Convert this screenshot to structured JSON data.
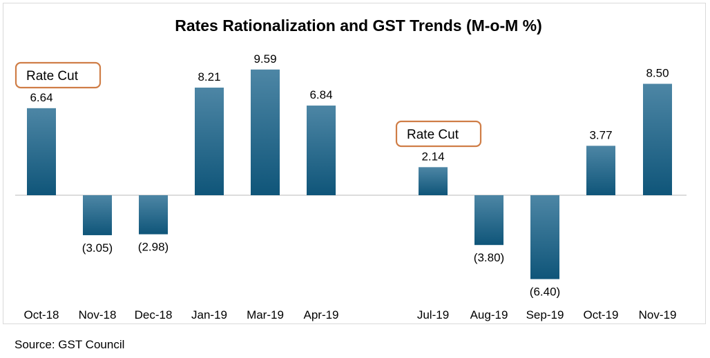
{
  "source_note": "Source: GST Council",
  "chart_data": {
    "type": "bar",
    "title": "Rates Rationalization and GST Trends (M-o-M %)",
    "xlabel": "",
    "ylabel": "",
    "ylim": [
      -7.5,
      10.5
    ],
    "grid": false,
    "categories": [
      "Oct-18",
      "Nov-18",
      "Dec-18",
      "Jan-19",
      "Mar-19",
      "Apr-19",
      "Jul-19",
      "Aug-19",
      "Sep-19",
      "Oct-19",
      "Nov-19"
    ],
    "values": [
      6.64,
      -3.05,
      -2.98,
      8.21,
      9.59,
      6.84,
      2.14,
      -3.8,
      -6.4,
      3.77,
      8.5
    ],
    "value_labels": [
      "6.64",
      "(3.05)",
      "(2.98)",
      "8.21",
      "9.59",
      "6.84",
      "2.14",
      "(3.80)",
      "(6.40)",
      "3.77",
      "8.50"
    ],
    "annotations": [
      {
        "text": "Rate Cut",
        "category": "Oct-18"
      },
      {
        "text": "Rate Cut",
        "category": "Jul-19"
      }
    ],
    "colors": {
      "bar_top": "#4d86a5",
      "bar_bottom": "#0f5579",
      "annotation_border": "#cf7d46",
      "baseline": "#d0d0d0"
    }
  }
}
